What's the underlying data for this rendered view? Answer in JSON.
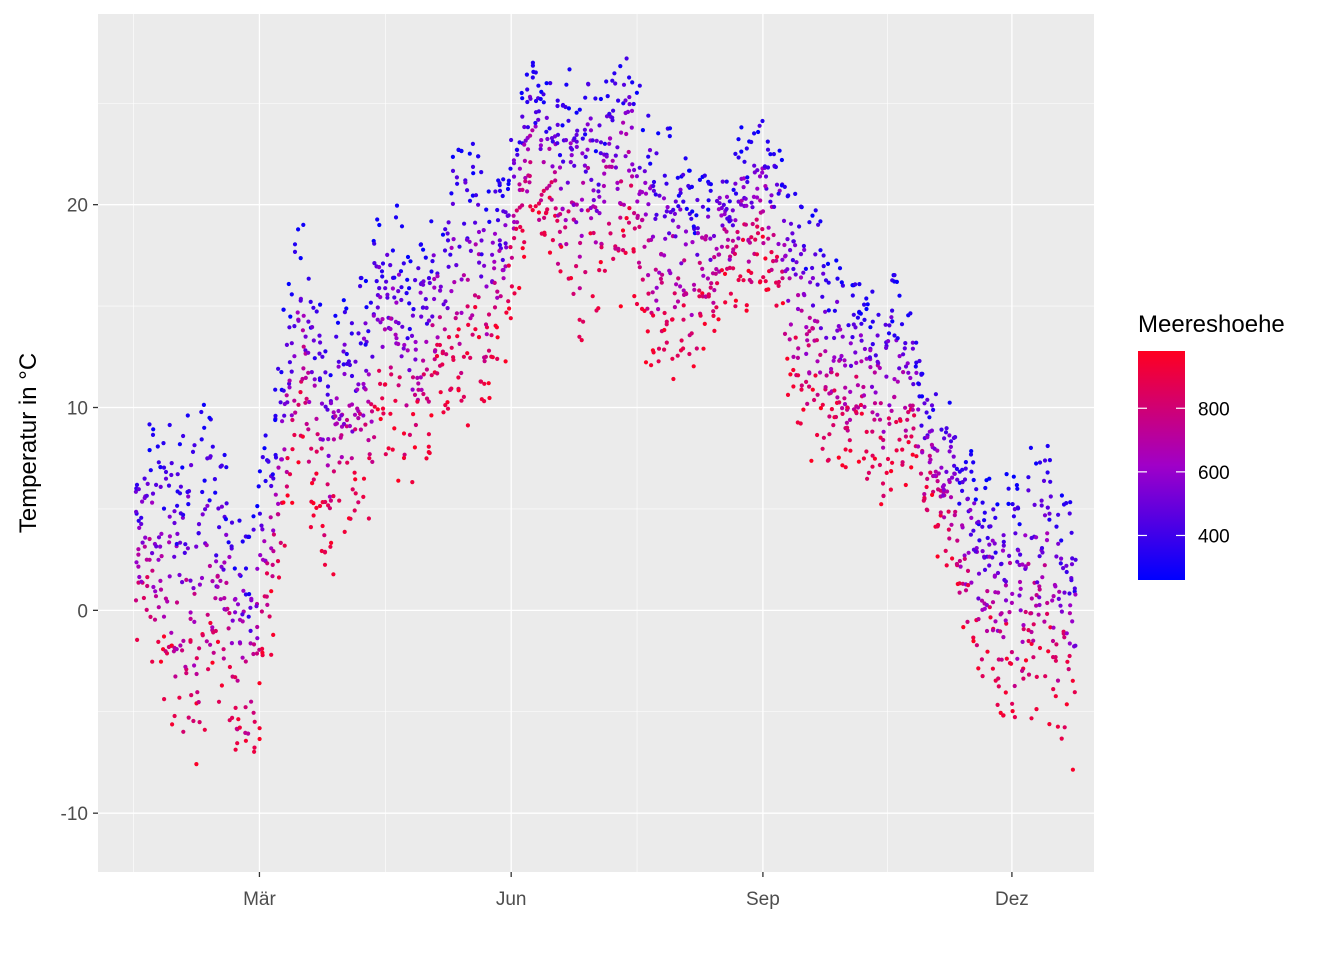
{
  "chart_data": {
    "type": "scatter",
    "title": "",
    "xlabel": "",
    "ylabel": "Temperatur in °C",
    "x_axis": {
      "type": "date",
      "range": [
        "2019-01-01",
        "2019-12-31"
      ],
      "ticks": [
        {
          "date": "2019-03-01",
          "label": "Mär"
        },
        {
          "date": "2019-06-01",
          "label": "Jun"
        },
        {
          "date": "2019-09-01",
          "label": "Sep"
        },
        {
          "date": "2019-12-01",
          "label": "Dez"
        }
      ]
    },
    "y_axis": {
      "range": [
        -12.9,
        29.4
      ],
      "ticks": [
        -10,
        0,
        10,
        20
      ]
    },
    "grid": true,
    "point_series": {
      "description": "daily mean temperatures per station, colored by station altitude",
      "color_variable": "Meereshoehe"
    },
    "daily_profile": [
      {
        "date": "2019-01-15",
        "low": -2,
        "high": 9
      },
      {
        "date": "2019-01-25",
        "low": -7,
        "high": 8
      },
      {
        "date": "2019-02-05",
        "low": -10,
        "high": 10
      },
      {
        "date": "2019-02-15",
        "low": -6,
        "high": 8
      },
      {
        "date": "2019-02-25",
        "low": -11,
        "high": 3
      },
      {
        "date": "2019-03-05",
        "low": -3,
        "high": 10
      },
      {
        "date": "2019-03-15",
        "low": 6,
        "high": 19
      },
      {
        "date": "2019-03-25",
        "low": 1,
        "high": 14
      },
      {
        "date": "2019-04-05",
        "low": 2,
        "high": 15
      },
      {
        "date": "2019-04-15",
        "low": 6,
        "high": 20
      },
      {
        "date": "2019-04-25",
        "low": 5,
        "high": 18
      },
      {
        "date": "2019-05-05",
        "low": 8,
        "high": 19
      },
      {
        "date": "2019-05-15",
        "low": 9,
        "high": 24
      },
      {
        "date": "2019-05-25",
        "low": 9,
        "high": 20
      },
      {
        "date": "2019-06-05",
        "low": 16,
        "high": 26
      },
      {
        "date": "2019-06-15",
        "low": 17,
        "high": 26
      },
      {
        "date": "2019-06-25",
        "low": 11,
        "high": 26
      },
      {
        "date": "2019-07-05",
        "low": 15,
        "high": 26
      },
      {
        "date": "2019-07-15",
        "low": 14,
        "high": 28
      },
      {
        "date": "2019-07-25",
        "low": 10,
        "high": 24
      },
      {
        "date": "2019-08-05",
        "low": 11,
        "high": 22
      },
      {
        "date": "2019-08-15",
        "low": 13,
        "high": 21
      },
      {
        "date": "2019-08-25",
        "low": 15,
        "high": 24
      },
      {
        "date": "2019-09-05",
        "low": 14,
        "high": 23
      },
      {
        "date": "2019-09-15",
        "low": 7,
        "high": 20
      },
      {
        "date": "2019-09-25",
        "low": 6,
        "high": 18
      },
      {
        "date": "2019-10-05",
        "low": 6,
        "high": 15
      },
      {
        "date": "2019-10-15",
        "low": 4,
        "high": 17
      },
      {
        "date": "2019-10-25",
        "low": 6,
        "high": 14
      },
      {
        "date": "2019-11-05",
        "low": 2,
        "high": 10
      },
      {
        "date": "2019-11-15",
        "low": -4,
        "high": 8
      },
      {
        "date": "2019-11-25",
        "low": -6,
        "high": 5
      },
      {
        "date": "2019-12-05",
        "low": -7,
        "high": 8
      },
      {
        "date": "2019-12-15",
        "low": -7,
        "high": 7
      },
      {
        "date": "2019-12-24",
        "low": -8,
        "high": 5
      }
    ],
    "legend": {
      "title": "Meereshoehe",
      "type": "gradient",
      "placement": "right",
      "range": [
        260,
        980
      ],
      "ticks": [
        400,
        600,
        800
      ],
      "color_low": "#0000ff",
      "color_mid": "#a000c8",
      "color_high": "#ff0020"
    },
    "colors": {
      "panel_background": "#ebebeb",
      "grid_major": "#ffffff",
      "page_background": "#ffffff"
    }
  }
}
